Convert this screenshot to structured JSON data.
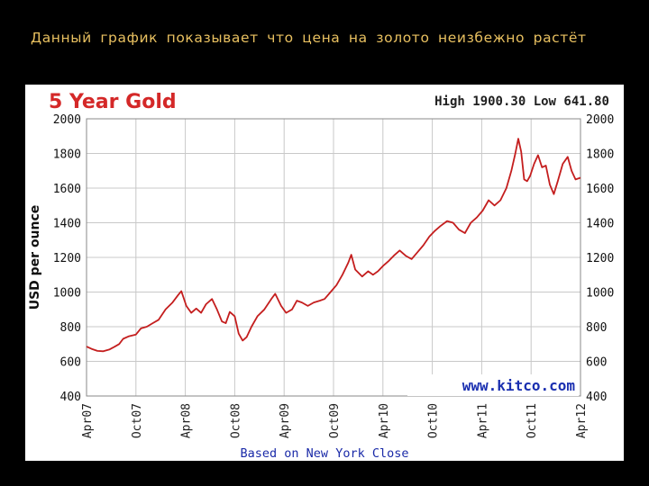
{
  "caption": "Данный график показывает что цена на золото неизбежно растёт",
  "colors": {
    "background": "#000000",
    "caption": "#e8c060",
    "title": "#d42828",
    "series_line": "#c41e1e",
    "watermark": "#1a2fb0",
    "grid": "#c8c8c8"
  },
  "chart_data": {
    "type": "line",
    "title": "5 Year Gold",
    "high_low_text": "High 1900.30 Low 641.80",
    "ylabel": "USD per ounce",
    "xlabel": "",
    "footnote": "Based on New York Close",
    "watermark": "www.kitco.com",
    "ylim": [
      400,
      2000
    ],
    "yticks": [
      400,
      600,
      800,
      1000,
      1200,
      1400,
      1600,
      1800,
      2000
    ],
    "y_axis_sides": "left and right",
    "x_range": [
      2007.25,
      2012.25
    ],
    "xticks": [
      {
        "value": 2007.25,
        "label": "Apr07"
      },
      {
        "value": 2007.75,
        "label": "Oct07"
      },
      {
        "value": 2008.25,
        "label": "Apr08"
      },
      {
        "value": 2008.75,
        "label": "Oct08"
      },
      {
        "value": 2009.25,
        "label": "Apr09"
      },
      {
        "value": 2009.75,
        "label": "Oct09"
      },
      {
        "value": 2010.25,
        "label": "Apr10"
      },
      {
        "value": 2010.75,
        "label": "Oct10"
      },
      {
        "value": 2011.25,
        "label": "Apr11"
      },
      {
        "value": 2011.75,
        "label": "Oct11"
      },
      {
        "value": 2012.25,
        "label": "Apr12"
      }
    ],
    "grid": true,
    "series": [
      {
        "values": [
          {
            "x": 2007.25,
            "y": 685
          },
          {
            "x": 2007.3,
            "y": 672
          },
          {
            "x": 2007.36,
            "y": 660
          },
          {
            "x": 2007.42,
            "y": 658
          },
          {
            "x": 2007.48,
            "y": 668
          },
          {
            "x": 2007.52,
            "y": 680
          },
          {
            "x": 2007.58,
            "y": 700
          },
          {
            "x": 2007.62,
            "y": 730
          },
          {
            "x": 2007.68,
            "y": 745
          },
          {
            "x": 2007.75,
            "y": 755
          },
          {
            "x": 2007.8,
            "y": 790
          },
          {
            "x": 2007.86,
            "y": 800
          },
          {
            "x": 2007.92,
            "y": 820
          },
          {
            "x": 2007.98,
            "y": 840
          },
          {
            "x": 2008.05,
            "y": 900
          },
          {
            "x": 2008.12,
            "y": 940
          },
          {
            "x": 2008.18,
            "y": 985
          },
          {
            "x": 2008.21,
            "y": 1005
          },
          {
            "x": 2008.26,
            "y": 920
          },
          {
            "x": 2008.31,
            "y": 880
          },
          {
            "x": 2008.36,
            "y": 905
          },
          {
            "x": 2008.41,
            "y": 880
          },
          {
            "x": 2008.46,
            "y": 930
          },
          {
            "x": 2008.52,
            "y": 960
          },
          {
            "x": 2008.57,
            "y": 900
          },
          {
            "x": 2008.62,
            "y": 830
          },
          {
            "x": 2008.66,
            "y": 820
          },
          {
            "x": 2008.7,
            "y": 885
          },
          {
            "x": 2008.75,
            "y": 860
          },
          {
            "x": 2008.79,
            "y": 760
          },
          {
            "x": 2008.83,
            "y": 720
          },
          {
            "x": 2008.87,
            "y": 740
          },
          {
            "x": 2008.92,
            "y": 800
          },
          {
            "x": 2008.98,
            "y": 860
          },
          {
            "x": 2009.05,
            "y": 900
          },
          {
            "x": 2009.12,
            "y": 960
          },
          {
            "x": 2009.16,
            "y": 990
          },
          {
            "x": 2009.22,
            "y": 920
          },
          {
            "x": 2009.27,
            "y": 880
          },
          {
            "x": 2009.33,
            "y": 900
          },
          {
            "x": 2009.38,
            "y": 950
          },
          {
            "x": 2009.43,
            "y": 940
          },
          {
            "x": 2009.49,
            "y": 920
          },
          {
            "x": 2009.55,
            "y": 940
          },
          {
            "x": 2009.61,
            "y": 950
          },
          {
            "x": 2009.66,
            "y": 960
          },
          {
            "x": 2009.72,
            "y": 1000
          },
          {
            "x": 2009.78,
            "y": 1040
          },
          {
            "x": 2009.84,
            "y": 1100
          },
          {
            "x": 2009.9,
            "y": 1170
          },
          {
            "x": 2009.93,
            "y": 1215
          },
          {
            "x": 2009.97,
            "y": 1130
          },
          {
            "x": 2010.04,
            "y": 1090
          },
          {
            "x": 2010.1,
            "y": 1120
          },
          {
            "x": 2010.15,
            "y": 1100
          },
          {
            "x": 2010.2,
            "y": 1120
          },
          {
            "x": 2010.25,
            "y": 1150
          },
          {
            "x": 2010.31,
            "y": 1180
          },
          {
            "x": 2010.36,
            "y": 1210
          },
          {
            "x": 2010.42,
            "y": 1240
          },
          {
            "x": 2010.48,
            "y": 1210
          },
          {
            "x": 2010.54,
            "y": 1190
          },
          {
            "x": 2010.6,
            "y": 1230
          },
          {
            "x": 2010.66,
            "y": 1270
          },
          {
            "x": 2010.72,
            "y": 1320
          },
          {
            "x": 2010.77,
            "y": 1350
          },
          {
            "x": 2010.83,
            "y": 1380
          },
          {
            "x": 2010.9,
            "y": 1410
          },
          {
            "x": 2010.96,
            "y": 1400
          },
          {
            "x": 2011.02,
            "y": 1360
          },
          {
            "x": 2011.08,
            "y": 1340
          },
          {
            "x": 2011.14,
            "y": 1400
          },
          {
            "x": 2011.2,
            "y": 1430
          },
          {
            "x": 2011.26,
            "y": 1470
          },
          {
            "x": 2011.32,
            "y": 1530
          },
          {
            "x": 2011.38,
            "y": 1500
          },
          {
            "x": 2011.44,
            "y": 1530
          },
          {
            "x": 2011.5,
            "y": 1600
          },
          {
            "x": 2011.55,
            "y": 1700
          },
          {
            "x": 2011.59,
            "y": 1800
          },
          {
            "x": 2011.62,
            "y": 1885
          },
          {
            "x": 2011.65,
            "y": 1810
          },
          {
            "x": 2011.68,
            "y": 1650
          },
          {
            "x": 2011.71,
            "y": 1640
          },
          {
            "x": 2011.74,
            "y": 1670
          },
          {
            "x": 2011.78,
            "y": 1740
          },
          {
            "x": 2011.82,
            "y": 1790
          },
          {
            "x": 2011.86,
            "y": 1720
          },
          {
            "x": 2011.9,
            "y": 1730
          },
          {
            "x": 2011.94,
            "y": 1620
          },
          {
            "x": 2011.98,
            "y": 1565
          },
          {
            "x": 2012.02,
            "y": 1640
          },
          {
            "x": 2012.07,
            "y": 1740
          },
          {
            "x": 2012.12,
            "y": 1780
          },
          {
            "x": 2012.16,
            "y": 1700
          },
          {
            "x": 2012.2,
            "y": 1650
          },
          {
            "x": 2012.25,
            "y": 1660
          }
        ]
      }
    ]
  }
}
